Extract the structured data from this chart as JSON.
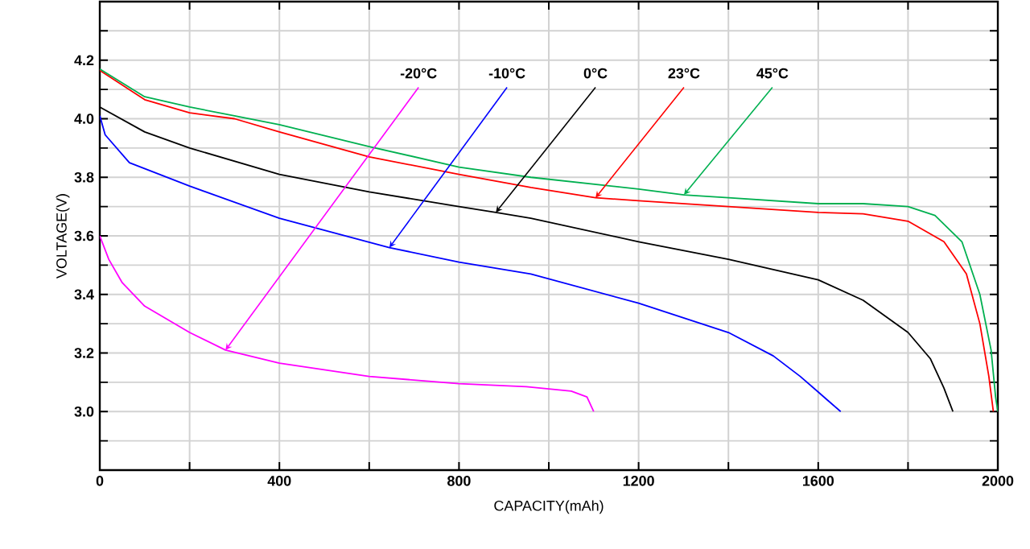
{
  "chart_data": {
    "type": "line",
    "xlabel": "CAPACITY(mAh)",
    "ylabel": "VOLTAGE(V)",
    "xlim": [
      0,
      2000
    ],
    "ylim": [
      2.8,
      4.4
    ],
    "xticks": [
      0,
      {
        "value": 200,
        "label": null
      },
      400,
      {
        "value": 600,
        "label": null
      },
      800,
      {
        "value": 1000,
        "label": null
      },
      1200,
      {
        "value": 1400,
        "label": null
      },
      1600,
      {
        "value": 1800,
        "label": null
      },
      2000
    ],
    "yticks": [
      {
        "value": 2.9,
        "label": null
      },
      {
        "value": 3.0,
        "label": "3.0"
      },
      {
        "value": 3.1,
        "label": null
      },
      3.2,
      {
        "value": 3.3,
        "label": null
      },
      3.4,
      {
        "value": 3.5,
        "label": null
      },
      3.6,
      {
        "value": 3.7,
        "label": null
      },
      3.8,
      {
        "value": 3.9,
        "label": null
      },
      {
        "value": 4.0,
        "label": "4.0"
      },
      {
        "value": 4.1,
        "label": null
      },
      4.2,
      {
        "value": 4.3,
        "label": null
      }
    ],
    "grid": true,
    "marker": "none",
    "line_style": "solid",
    "series": [
      {
        "color": "#ff00ff",
        "x": [
          0,
          20,
          50,
          100,
          200,
          280,
          400,
          600,
          800,
          950,
          1050,
          1085,
          1100
        ],
        "values": [
          3.6,
          3.52,
          3.44,
          3.36,
          3.27,
          3.21,
          3.165,
          3.12,
          3.095,
          3.085,
          3.07,
          3.05,
          3.0
        ]
      },
      {
        "color": "#0000ff",
        "x": [
          0,
          12,
          66,
          200,
          400,
          645,
          800,
          960,
          1200,
          1400,
          1500,
          1560,
          1620,
          1650
        ],
        "values": [
          4.01,
          3.945,
          3.85,
          3.77,
          3.66,
          3.56,
          3.51,
          3.47,
          3.37,
          3.27,
          3.19,
          3.12,
          3.04,
          3.0
        ]
      },
      {
        "color": "#000000",
        "x": [
          0,
          100,
          200,
          400,
          600,
          800,
          882,
          960,
          1200,
          1400,
          1600,
          1700,
          1800,
          1850,
          1880,
          1900
        ],
        "values": [
          4.04,
          3.955,
          3.9,
          3.81,
          3.75,
          3.7,
          3.68,
          3.66,
          3.58,
          3.52,
          3.45,
          3.38,
          3.27,
          3.18,
          3.08,
          3.0
        ]
      },
      {
        "color": "#ff0000",
        "x": [
          0,
          100,
          200,
          300,
          400,
          600,
          800,
          960,
          1104,
          1200,
          1400,
          1600,
          1700,
          1800,
          1880,
          1930,
          1960,
          1980,
          1990
        ],
        "values": [
          4.165,
          4.065,
          4.02,
          4.0,
          3.955,
          3.87,
          3.81,
          3.765,
          3.73,
          3.72,
          3.7,
          3.68,
          3.675,
          3.65,
          3.58,
          3.47,
          3.3,
          3.12,
          3.0
        ]
      },
      {
        "color": "#00b050",
        "x": [
          0,
          100,
          200,
          300,
          400,
          600,
          800,
          960,
          1200,
          1301,
          1400,
          1600,
          1700,
          1800,
          1860,
          1920,
          1960,
          1985,
          1995,
          2000
        ],
        "values": [
          4.17,
          4.075,
          4.04,
          4.01,
          3.98,
          3.905,
          3.835,
          3.8,
          3.76,
          3.74,
          3.73,
          3.71,
          3.71,
          3.7,
          3.67,
          3.58,
          3.4,
          3.21,
          3.05,
          3.0
        ]
      }
    ],
    "annotations": [
      {
        "text": "-20°C",
        "x": 280,
        "y": 3.21
      },
      {
        "text": "-10°C",
        "x": 645,
        "y": 3.56
      },
      {
        "text": "0°C",
        "x": 882,
        "y": 3.68
      },
      {
        "text": "23°C",
        "x": 1104,
        "y": 3.73
      },
      {
        "text": "45°C",
        "x": 1301,
        "y": 3.74
      }
    ]
  }
}
